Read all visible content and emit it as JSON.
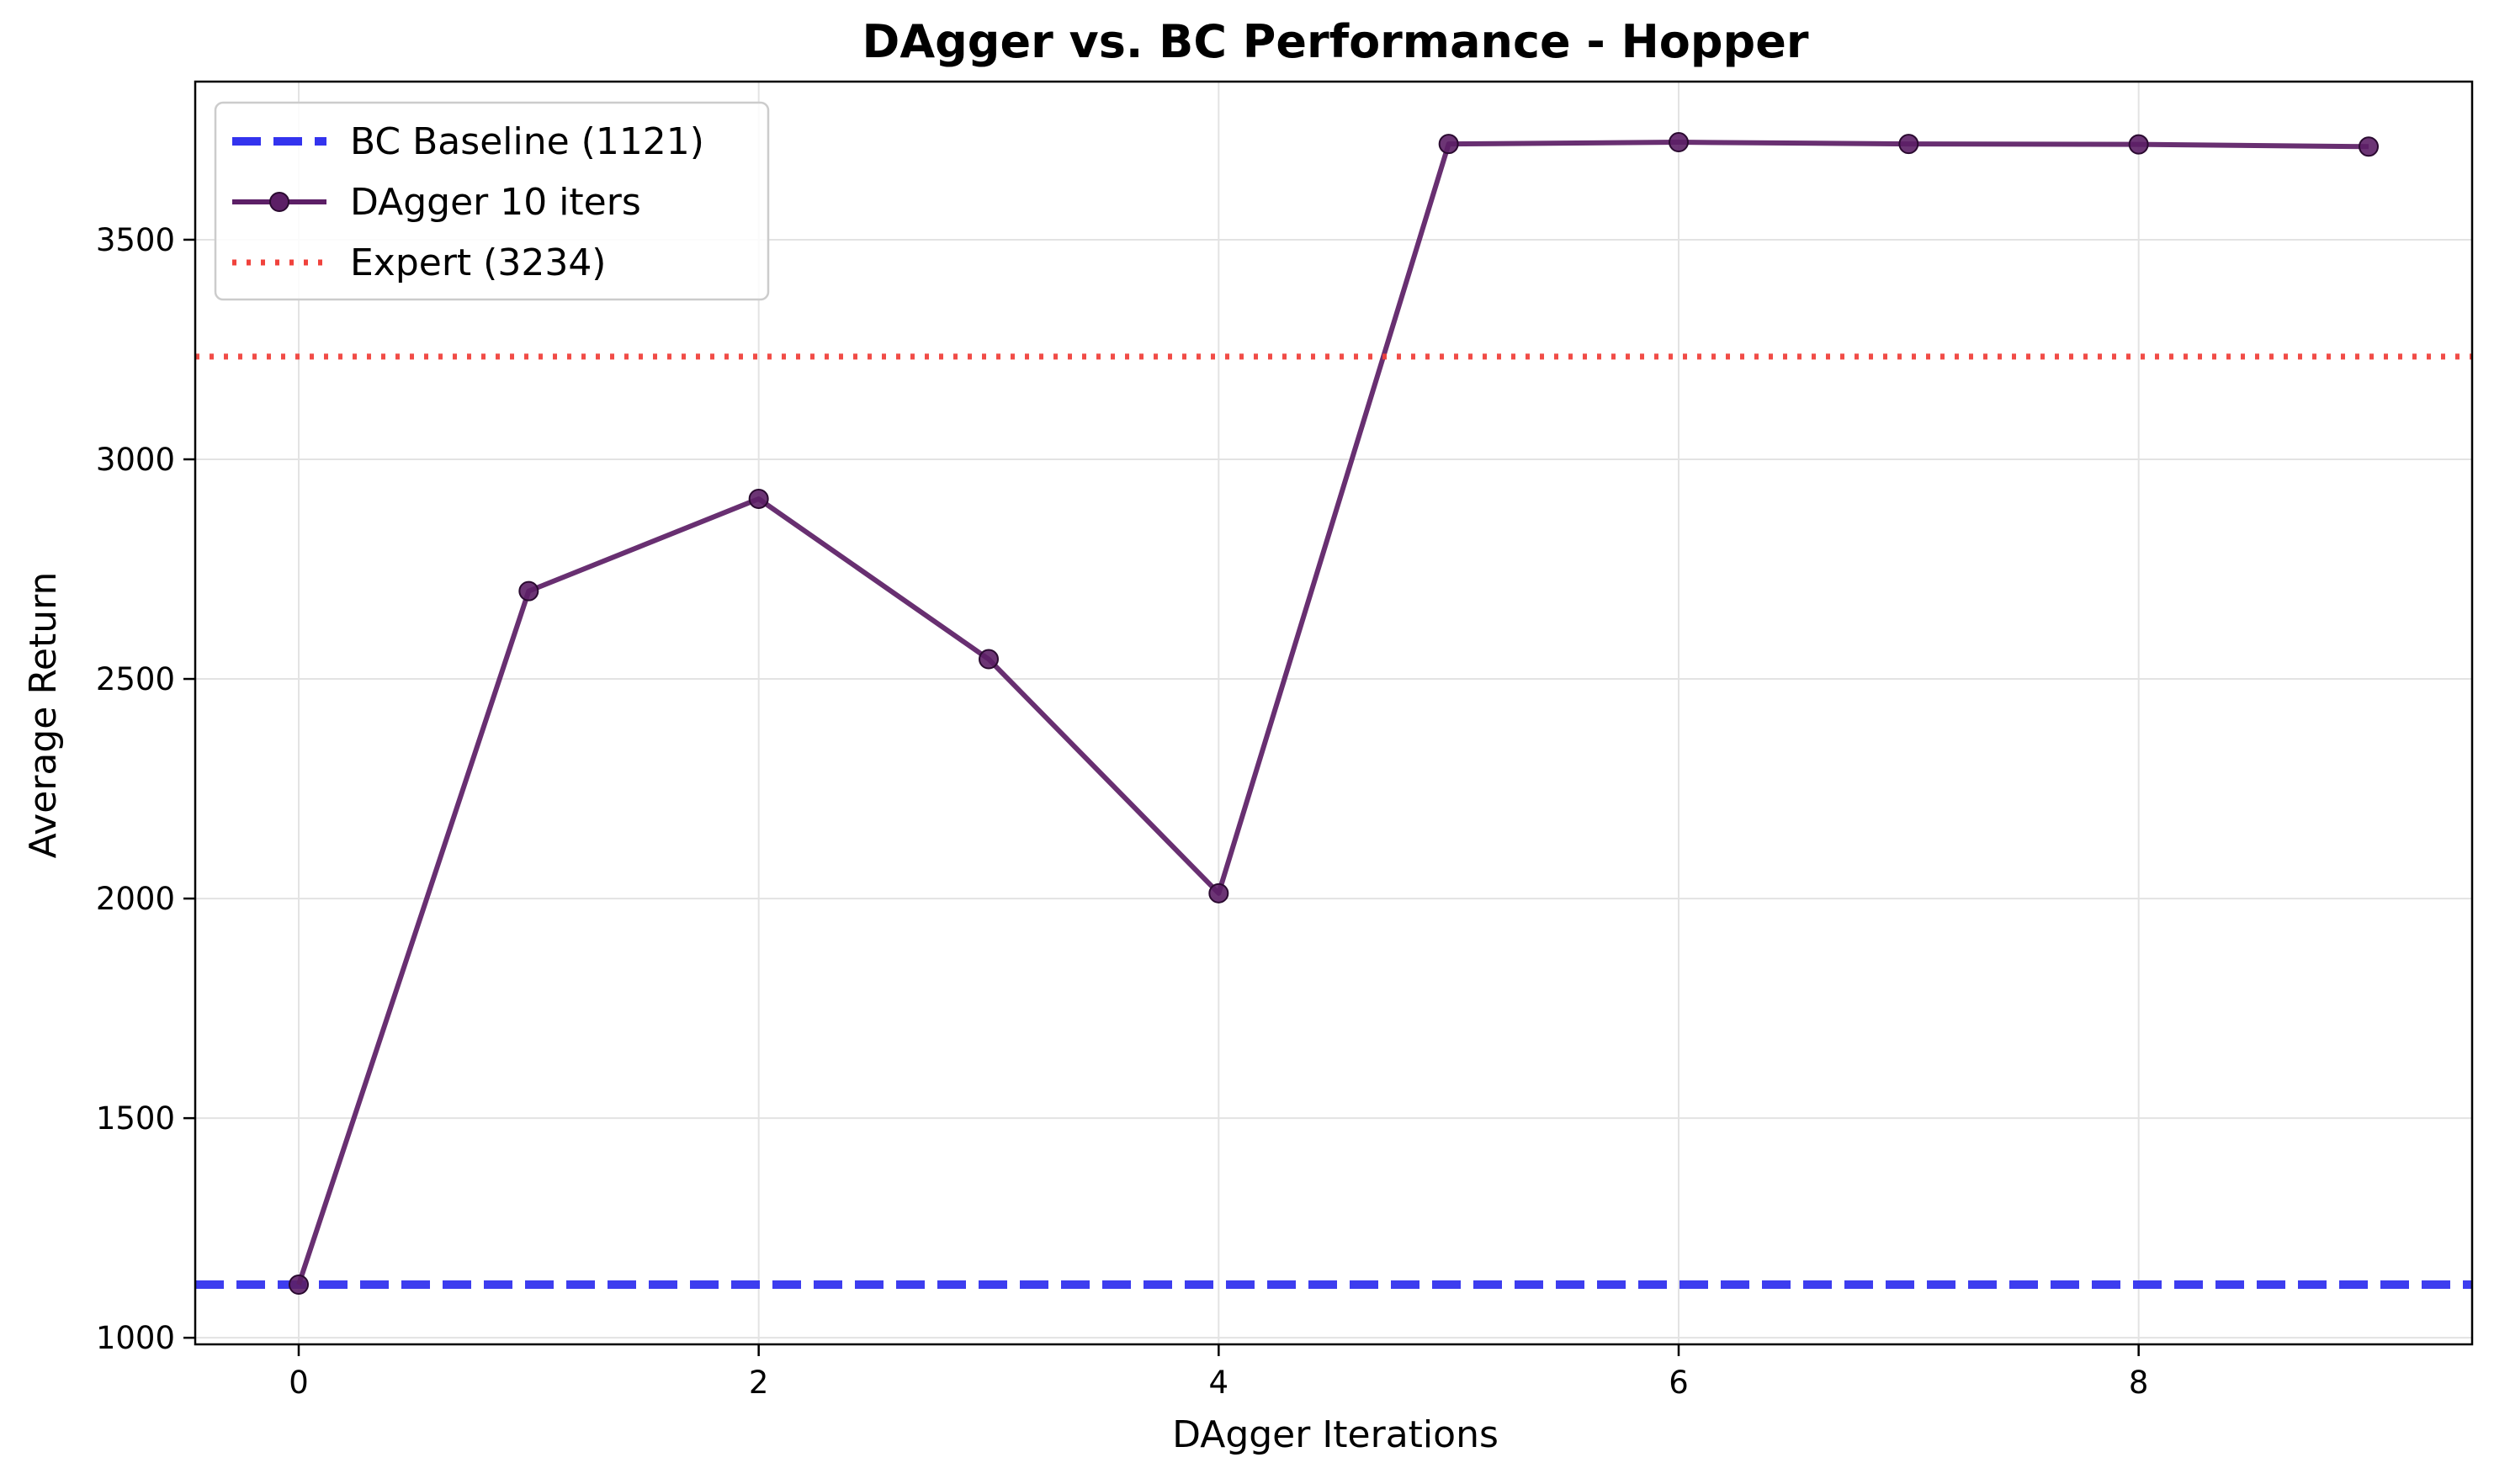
{
  "chart_data": {
    "type": "line",
    "title": "DAgger vs. BC Performance - Hopper",
    "xlabel": "DAgger Iterations",
    "ylabel": "Average Return",
    "xlim": [
      -0.45,
      9.45
    ],
    "ylim": [
      985,
      3860
    ],
    "xticks": [
      0,
      2,
      4,
      6,
      8
    ],
    "yticks": [
      1000,
      1500,
      2000,
      2500,
      3000,
      3500
    ],
    "grid": true,
    "legend_position": "top-left",
    "series": [
      {
        "name": "BC Baseline (1121)",
        "kind": "hline",
        "value": 1121,
        "style": "dashed",
        "color": "#3333ee"
      },
      {
        "name": "DAgger 10 iters",
        "kind": "line",
        "style": "solid",
        "marker": "circle",
        "color": "#5c1f66",
        "x": [
          0,
          1,
          2,
          3,
          4,
          5,
          6,
          7,
          8,
          9
        ],
        "y": [
          1121,
          2700,
          2910,
          2545,
          2012,
          3718,
          3722,
          3718,
          3717,
          3712
        ]
      },
      {
        "name": "Expert (3234)",
        "kind": "hline",
        "value": 3234,
        "style": "dotted",
        "color": "#f0423c"
      }
    ]
  }
}
